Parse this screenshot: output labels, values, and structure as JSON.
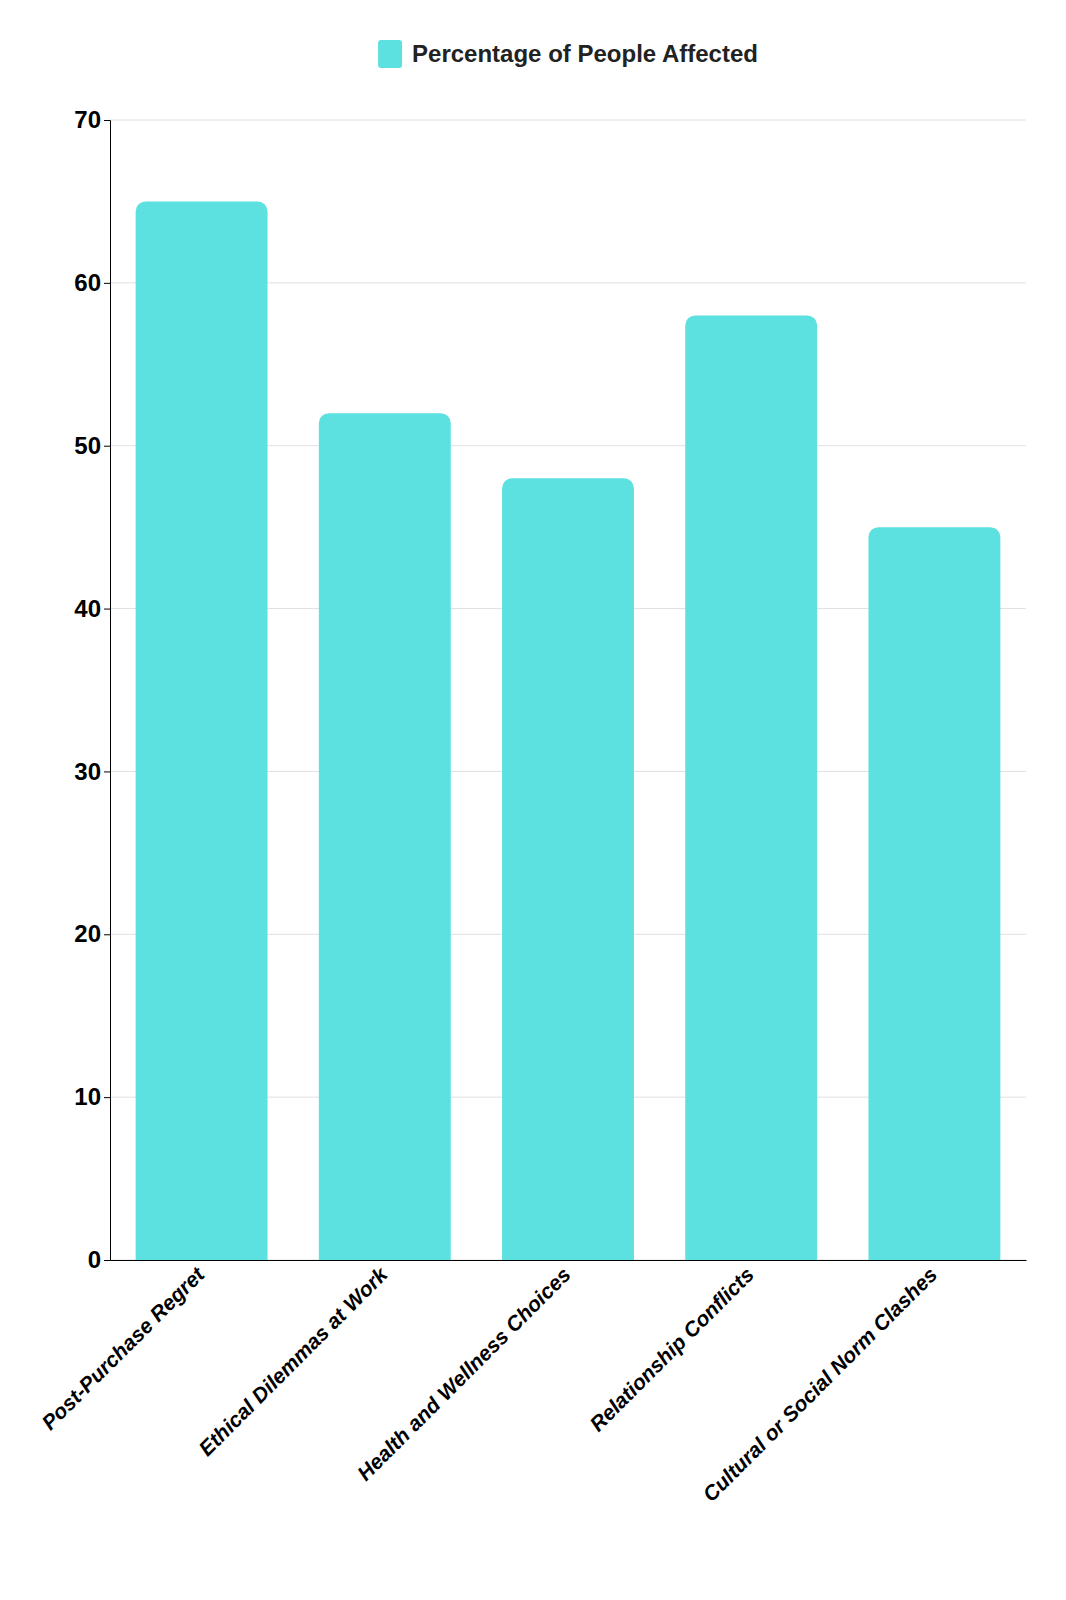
{
  "chart_data": {
    "type": "bar",
    "categories": [
      "Post-Purchase Regret",
      "Ethical Dilemmas at Work",
      "Health and Wellness Choices",
      "Relationship Conflicts",
      "Cultural or Social Norm Clashes"
    ],
    "series": [
      {
        "name": "Percentage of People Affected",
        "color": "#5DE0E0",
        "values": [
          65,
          52,
          48,
          58,
          45
        ]
      }
    ],
    "ylim": [
      0,
      70
    ],
    "yticks": [
      0,
      10,
      20,
      30,
      40,
      50,
      60,
      70
    ],
    "grid": true,
    "legend": "top"
  }
}
